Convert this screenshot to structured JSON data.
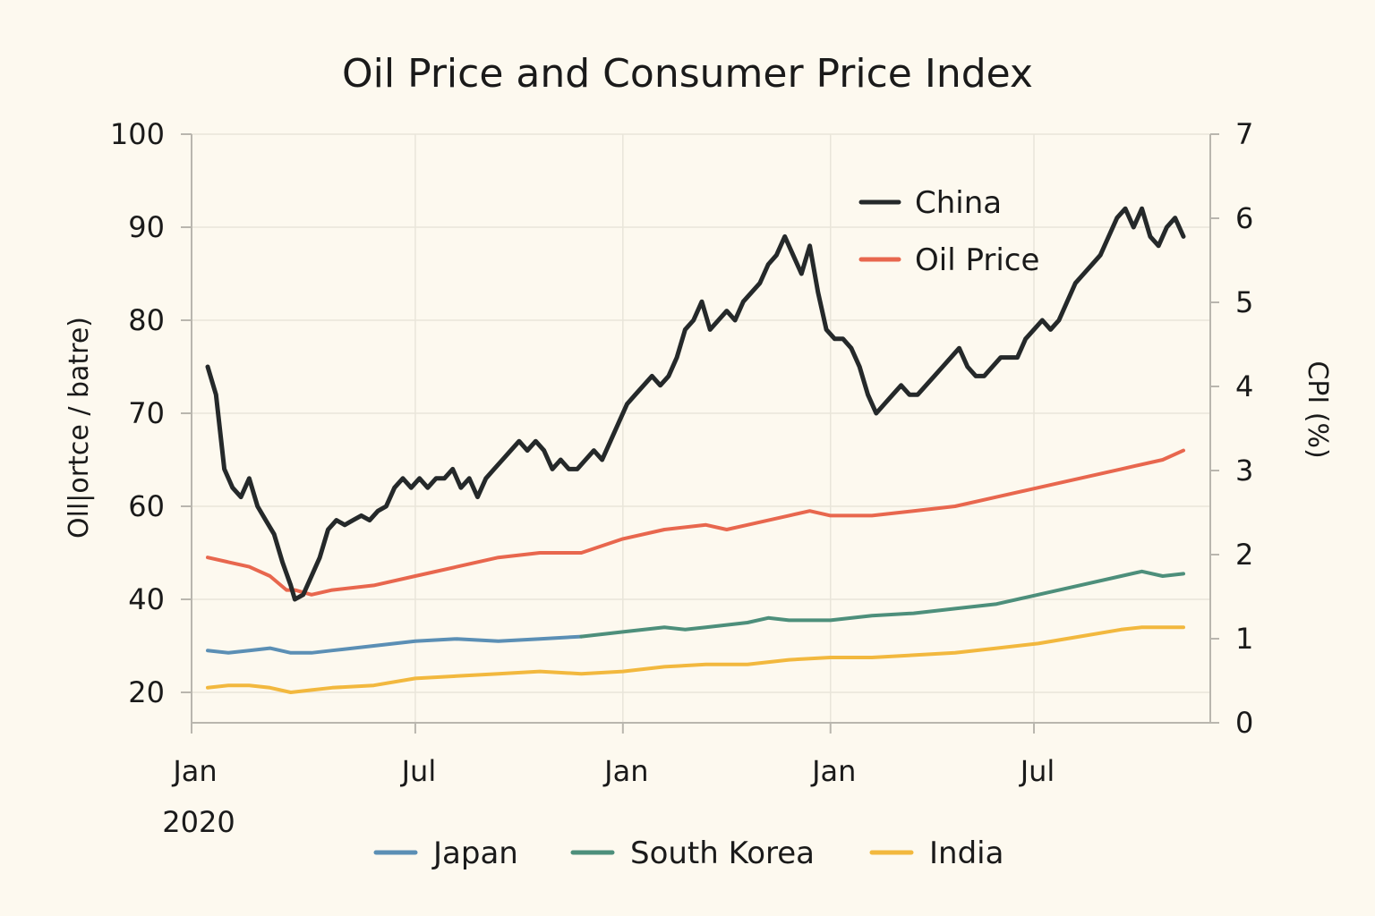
{
  "chart_data": {
    "type": "line",
    "title": "Oil Price and Consumer Price Index",
    "ylabel_left": "Oll|ortce / batre)",
    "ylabel_right": "CPI (%)",
    "left_ylim": [
      15,
      100
    ],
    "left_ticks": [
      "100",
      "90",
      "80",
      "70",
      "60",
      "40",
      "20"
    ],
    "right_ylim": [
      0,
      7
    ],
    "right_ticks": [
      "7",
      "6",
      "5",
      "4",
      "3",
      "2",
      "1",
      "0"
    ],
    "x_ticks": [
      "Jan",
      "Jul",
      "Jan",
      "Jan",
      "Jul"
    ],
    "x_year_label": "2020",
    "grid": true,
    "legend_top": [
      "China",
      "Oil Price"
    ],
    "legend_bottom": [
      "Japan",
      "South Korea",
      "India"
    ],
    "series": [
      {
        "name": "China",
        "axis": "left",
        "color": "#25292a",
        "points": [
          [
            0,
            75
          ],
          [
            2,
            72
          ],
          [
            4,
            64
          ],
          [
            6,
            62
          ],
          [
            8,
            61
          ],
          [
            10,
            63
          ],
          [
            12,
            60
          ],
          [
            14,
            57
          ],
          [
            16,
            54
          ],
          [
            18,
            48
          ],
          [
            20,
            43
          ],
          [
            21,
            40
          ],
          [
            23,
            41
          ],
          [
            25,
            45
          ],
          [
            27,
            49
          ],
          [
            29,
            55
          ],
          [
            31,
            57
          ],
          [
            33,
            56
          ],
          [
            35,
            57
          ],
          [
            37,
            58
          ],
          [
            39,
            57
          ],
          [
            41,
            59
          ],
          [
            43,
            60
          ],
          [
            45,
            62
          ],
          [
            47,
            63
          ],
          [
            49,
            62
          ],
          [
            51,
            63
          ],
          [
            53,
            62
          ],
          [
            55,
            63
          ],
          [
            57,
            63
          ],
          [
            59,
            64
          ],
          [
            61,
            62
          ],
          [
            63,
            63
          ],
          [
            65,
            61
          ],
          [
            67,
            63
          ],
          [
            69,
            64
          ],
          [
            71,
            65
          ],
          [
            73,
            66
          ],
          [
            75,
            67
          ],
          [
            77,
            66
          ],
          [
            79,
            67
          ],
          [
            81,
            66
          ],
          [
            83,
            64
          ],
          [
            85,
            65
          ],
          [
            87,
            64
          ],
          [
            89,
            64
          ],
          [
            91,
            65
          ],
          [
            93,
            66
          ],
          [
            95,
            65
          ],
          [
            97,
            67
          ],
          [
            99,
            69
          ],
          [
            101,
            71
          ],
          [
            103,
            72
          ],
          [
            105,
            73
          ],
          [
            107,
            74
          ],
          [
            109,
            73
          ],
          [
            111,
            74
          ],
          [
            113,
            76
          ],
          [
            115,
            79
          ],
          [
            117,
            80
          ],
          [
            119,
            82
          ],
          [
            121,
            79
          ],
          [
            123,
            80
          ],
          [
            125,
            81
          ],
          [
            127,
            80
          ],
          [
            129,
            82
          ],
          [
            131,
            83
          ],
          [
            133,
            84
          ],
          [
            135,
            86
          ],
          [
            137,
            87
          ],
          [
            139,
            89
          ],
          [
            141,
            87
          ],
          [
            143,
            85
          ],
          [
            145,
            88
          ],
          [
            147,
            83
          ],
          [
            149,
            79
          ],
          [
            151,
            78
          ],
          [
            153,
            78
          ],
          [
            155,
            77
          ],
          [
            157,
            75
          ],
          [
            159,
            72
          ],
          [
            161,
            70
          ],
          [
            163,
            71
          ],
          [
            165,
            72
          ],
          [
            167,
            73
          ],
          [
            169,
            72
          ],
          [
            171,
            72
          ],
          [
            173,
            73
          ],
          [
            175,
            74
          ],
          [
            177,
            75
          ],
          [
            179,
            76
          ],
          [
            181,
            77
          ],
          [
            183,
            75
          ],
          [
            185,
            74
          ],
          [
            187,
            74
          ],
          [
            189,
            75
          ],
          [
            191,
            76
          ],
          [
            193,
            76
          ],
          [
            195,
            76
          ],
          [
            197,
            78
          ],
          [
            199,
            79
          ],
          [
            201,
            80
          ],
          [
            203,
            79
          ],
          [
            205,
            80
          ],
          [
            207,
            82
          ],
          [
            209,
            84
          ],
          [
            211,
            85
          ],
          [
            213,
            86
          ],
          [
            215,
            87
          ],
          [
            217,
            89
          ],
          [
            219,
            91
          ],
          [
            221,
            92
          ],
          [
            223,
            90
          ],
          [
            225,
            92
          ],
          [
            227,
            89
          ],
          [
            229,
            88
          ],
          [
            231,
            90
          ],
          [
            233,
            91
          ],
          [
            235,
            89
          ]
        ]
      },
      {
        "name": "Oil Price",
        "axis": "left",
        "color": "#e8674e",
        "points": [
          [
            0,
            49
          ],
          [
            5,
            48
          ],
          [
            10,
            47
          ],
          [
            15,
            45
          ],
          [
            19,
            42
          ],
          [
            21,
            42
          ],
          [
            25,
            41
          ],
          [
            30,
            42
          ],
          [
            40,
            43
          ],
          [
            50,
            45
          ],
          [
            60,
            47
          ],
          [
            70,
            49
          ],
          [
            80,
            50
          ],
          [
            90,
            50
          ],
          [
            100,
            53
          ],
          [
            110,
            55
          ],
          [
            120,
            56
          ],
          [
            125,
            55
          ],
          [
            130,
            56
          ],
          [
            140,
            58
          ],
          [
            145,
            59
          ],
          [
            150,
            58
          ],
          [
            160,
            58
          ],
          [
            170,
            59
          ],
          [
            180,
            60
          ],
          [
            190,
            61
          ],
          [
            200,
            62
          ],
          [
            210,
            63
          ],
          [
            220,
            64
          ],
          [
            230,
            65
          ],
          [
            235,
            66
          ]
        ]
      },
      {
        "name": "Japan",
        "axis": "left",
        "color": "#5b8fb5",
        "points": [
          [
            0,
            29
          ],
          [
            5,
            28.5
          ],
          [
            10,
            29
          ],
          [
            15,
            29.5
          ],
          [
            20,
            28.5
          ],
          [
            25,
            28.5
          ],
          [
            30,
            29
          ],
          [
            40,
            30
          ],
          [
            50,
            31
          ],
          [
            60,
            31.5
          ],
          [
            70,
            31
          ],
          [
            80,
            31.5
          ],
          [
            90,
            32
          ]
        ]
      },
      {
        "name": "South Korea",
        "axis": "left",
        "color": "#4d8f7b",
        "points": [
          [
            90,
            32
          ],
          [
            100,
            33
          ],
          [
            110,
            34
          ],
          [
            115,
            33.5
          ],
          [
            120,
            34
          ],
          [
            130,
            35
          ],
          [
            135,
            36
          ],
          [
            140,
            35.5
          ],
          [
            150,
            35.5
          ],
          [
            160,
            36.5
          ],
          [
            170,
            37
          ],
          [
            180,
            38
          ],
          [
            190,
            39
          ],
          [
            200,
            41
          ],
          [
            210,
            43
          ],
          [
            220,
            45
          ],
          [
            225,
            46
          ],
          [
            230,
            45
          ],
          [
            235,
            45.5
          ]
        ]
      },
      {
        "name": "India",
        "axis": "left",
        "color": "#f2b83e",
        "points": [
          [
            0,
            21
          ],
          [
            5,
            21.5
          ],
          [
            10,
            21.5
          ],
          [
            15,
            21
          ],
          [
            20,
            20
          ],
          [
            25,
            20.5
          ],
          [
            30,
            21
          ],
          [
            40,
            21.5
          ],
          [
            50,
            23
          ],
          [
            60,
            23.5
          ],
          [
            70,
            24
          ],
          [
            80,
            24.5
          ],
          [
            90,
            24
          ],
          [
            100,
            24.5
          ],
          [
            110,
            25.5
          ],
          [
            120,
            26
          ],
          [
            130,
            26
          ],
          [
            140,
            27
          ],
          [
            150,
            27.5
          ],
          [
            160,
            27.5
          ],
          [
            170,
            28
          ],
          [
            180,
            28.5
          ],
          [
            190,
            29.5
          ],
          [
            200,
            30.5
          ],
          [
            210,
            32
          ],
          [
            220,
            33.5
          ],
          [
            225,
            34
          ],
          [
            230,
            34
          ],
          [
            235,
            34
          ]
        ]
      }
    ]
  }
}
